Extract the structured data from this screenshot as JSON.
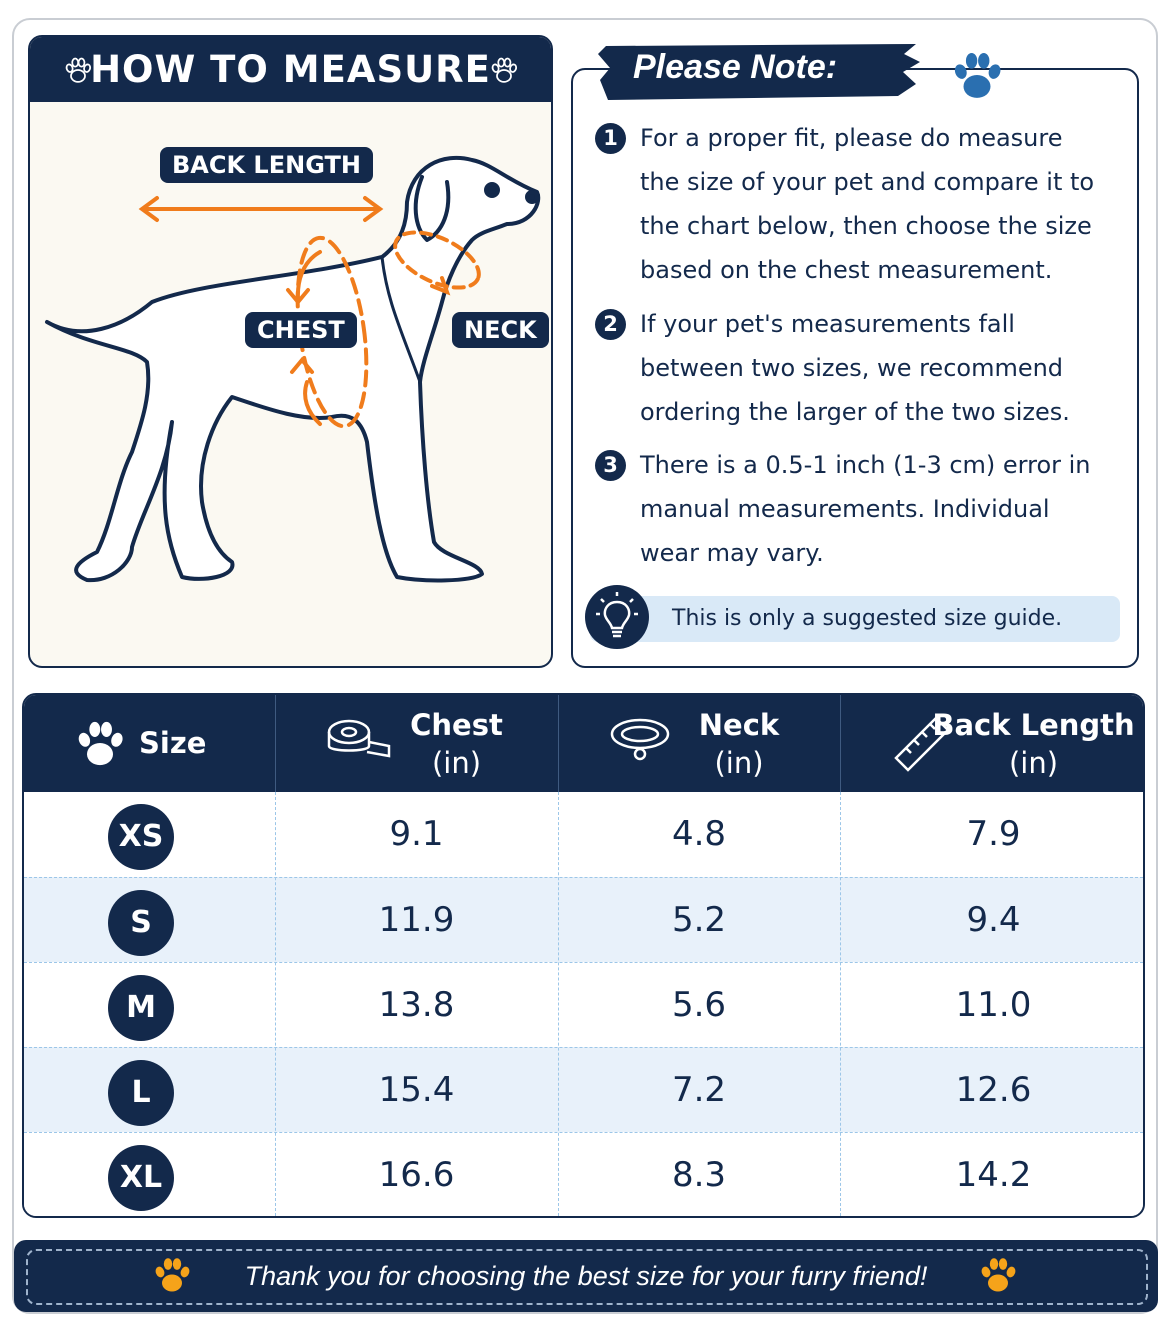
{
  "measure": {
    "title": "HOW TO MEASURE",
    "labels": {
      "back_length": "BACK LENGTH",
      "chest": "CHEST",
      "neck": "NECK"
    }
  },
  "note": {
    "title": "Please Note:",
    "items": [
      {
        "number": "1",
        "text": "For a proper fit, please do measure the size of your pet and compare it to the chart below, then choose the size based on the chest measurement."
      },
      {
        "number": "2",
        "text": "If your pet's measurements fall between two sizes, we recommend ordering the larger of the two sizes."
      },
      {
        "number": "3",
        "text": "There is a 0.5-1 inch (1-3 cm) error in manual measurements. Individual wear may vary."
      }
    ],
    "tip": "This is only a suggested size guide."
  },
  "table": {
    "headers": [
      {
        "name": "Size"
      },
      {
        "name": "Chest",
        "unit": "(in)"
      },
      {
        "name": "Neck",
        "unit": "(in)"
      },
      {
        "name": "Back Length",
        "unit": "(in)"
      }
    ],
    "rows": [
      [
        "XS",
        "9.1",
        "4.8",
        "7.9"
      ],
      [
        "S",
        "11.9",
        "5.2",
        "9.4"
      ],
      [
        "M",
        "13.8",
        "5.6",
        "11.0"
      ],
      [
        "L",
        "15.4",
        "7.2",
        "12.6"
      ],
      [
        "XL",
        "16.6",
        "8.3",
        "14.2"
      ]
    ]
  },
  "footer": "Thank you for choosing the best size for your furry friend!"
}
